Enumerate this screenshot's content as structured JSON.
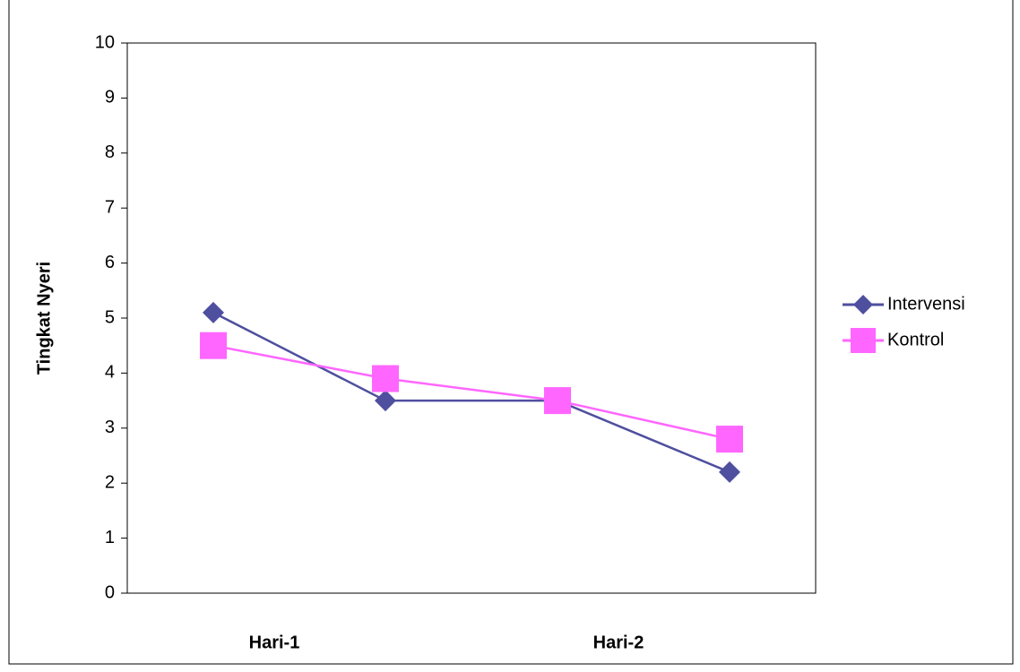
{
  "chart_data": {
    "type": "line",
    "y_label": "Tingkat Nyeri",
    "categories": [
      "Hari-1",
      null,
      "Hari-2",
      null
    ],
    "series": [
      {
        "name": "Intervensi",
        "color": "#4F4F9F",
        "marker": "diamond",
        "values": [
          5.1,
          3.5,
          3.5,
          2.2
        ]
      },
      {
        "name": "Kontrol",
        "color": "#FF66FF",
        "marker": "square",
        "values": [
          4.5,
          3.9,
          3.5,
          2.8
        ]
      }
    ],
    "ylim": [
      0,
      10
    ],
    "yticks": [
      0,
      1,
      2,
      3,
      4,
      5,
      6,
      7,
      8,
      9,
      10
    ],
    "grid": false,
    "legend": "right"
  }
}
